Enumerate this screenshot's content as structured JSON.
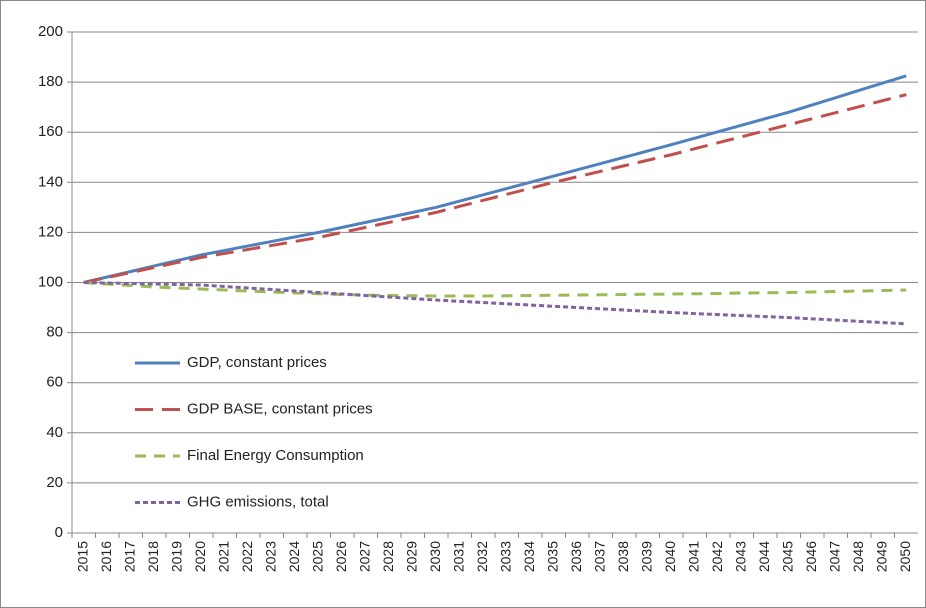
{
  "chart_data": {
    "type": "line",
    "categories": [
      "2015",
      "2016",
      "2017",
      "2018",
      "2019",
      "2020",
      "2021",
      "2022",
      "2023",
      "2024",
      "2025",
      "2026",
      "2027",
      "2028",
      "2029",
      "2030",
      "2031",
      "2032",
      "2033",
      "2034",
      "2035",
      "2036",
      "2037",
      "2038",
      "2039",
      "2040",
      "2041",
      "2042",
      "2043",
      "2044",
      "2045",
      "2046",
      "2047",
      "2048",
      "2049",
      "2050"
    ],
    "series": [
      {
        "name": "GDP, constant prices",
        "color": "#4f81bd",
        "dash": "solid",
        "values": [
          100,
          102.2,
          104.4,
          106.6,
          108.8,
          111,
          112.8,
          114.6,
          116.4,
          118.2,
          120,
          122,
          124,
          126,
          128,
          130,
          132.5,
          135,
          137.5,
          140,
          142.5,
          145,
          147.5,
          150,
          152.5,
          155,
          157.6,
          160.2,
          162.8,
          165.4,
          168,
          170.9,
          173.8,
          176.7,
          179.6,
          182.5
        ]
      },
      {
        "name": "GDP BASE, constant prices",
        "color": "#c0504d",
        "dash": "long",
        "values": [
          100,
          102,
          104,
          106,
          108,
          110,
          111.6,
          113.2,
          114.8,
          116.4,
          118,
          120,
          122,
          124,
          126,
          128,
          130.4,
          132.8,
          135.2,
          137.6,
          140,
          142.2,
          144.4,
          146.6,
          148.8,
          151,
          153.4,
          155.8,
          158.2,
          160.6,
          163,
          165.4,
          167.8,
          170.2,
          172.6,
          175
        ]
      },
      {
        "name": "Final Energy Consumption",
        "color": "#9bbb59",
        "dash": "medium",
        "values": [
          100,
          99.4,
          98.8,
          98.2,
          97.8,
          97.4,
          97,
          96.6,
          96.2,
          95.8,
          95.5,
          95.2,
          95,
          94.8,
          94.7,
          94.6,
          94.6,
          94.6,
          94.7,
          94.8,
          94.9,
          95,
          95.1,
          95.2,
          95.3,
          95.4,
          95.5,
          95.6,
          95.8,
          95.9,
          96,
          96.2,
          96.4,
          96.6,
          96.8,
          97
        ]
      },
      {
        "name": "GHG emissions, total",
        "color": "#8064a2",
        "dash": "short",
        "values": [
          100,
          99.8,
          99.6,
          99.4,
          99.2,
          99,
          98.4,
          97.8,
          97.2,
          96.6,
          96,
          95.4,
          94.8,
          94.2,
          93.6,
          93,
          92.5,
          92,
          91.5,
          91,
          90.5,
          90,
          89.5,
          89,
          88.5,
          88,
          87.6,
          87.2,
          86.8,
          86.4,
          86,
          85.5,
          85,
          84.5,
          84,
          83.5
        ]
      }
    ],
    "ylim": [
      0,
      200
    ],
    "yticks": [
      0,
      20,
      40,
      60,
      80,
      100,
      120,
      140,
      160,
      180,
      200
    ],
    "grid": true,
    "legend": "left"
  }
}
